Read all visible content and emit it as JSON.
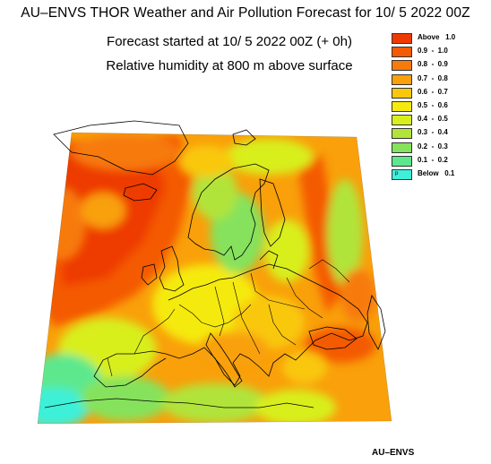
{
  "header": {
    "title": "AU–ENVS THOR Weather and Air Pollution Forecast for 10/ 5 2022  00Z",
    "forecast_start": "Forecast started at 10/ 5 2022  00Z (+ 0h)",
    "field": "Relative humidity at 800 m above surface"
  },
  "legend": {
    "items": [
      {
        "label": "Above   1.0",
        "color": "#ee3a00"
      },
      {
        "label": "0.9  -  1.0",
        "color": "#f45a05"
      },
      {
        "label": "0.8  -  0.9",
        "color": "#f77a0a"
      },
      {
        "label": "0.7  -  0.8",
        "color": "#f9a00a"
      },
      {
        "label": "0.6  -  0.7",
        "color": "#f9c80d"
      },
      {
        "label": "0.5  -  0.6",
        "color": "#f5ea10"
      },
      {
        "label": "0.4  -  0.5",
        "color": "#d8ef1c"
      },
      {
        "label": "0.3  -  0.4",
        "color": "#b1e43a"
      },
      {
        "label": "0.2  -  0.3",
        "color": "#86e25c"
      },
      {
        "label": "0.1  -  0.2",
        "color": "#5de88e"
      },
      {
        "label": "Below   0.1",
        "color": "#3ef0d8",
        "marker": "ᵖ"
      }
    ]
  },
  "footer": {
    "credit": "AU–ENVS"
  }
}
